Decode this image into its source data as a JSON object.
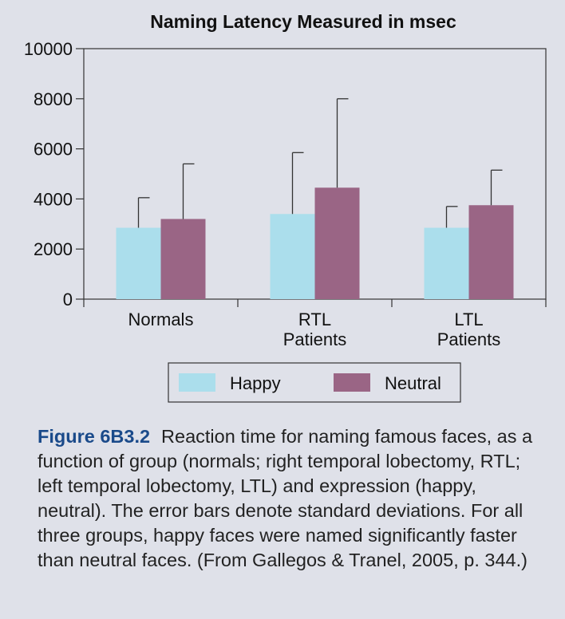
{
  "chart_data": {
    "type": "bar",
    "title": "Naming Latency Measured in msec",
    "categories": [
      [
        "Normals"
      ],
      [
        "RTL",
        "Patients"
      ],
      [
        "LTL",
        "Patients"
      ]
    ],
    "series": [
      {
        "name": "Happy",
        "values": [
          2850,
          3400,
          2850
        ],
        "error": [
          1200,
          2450,
          850
        ]
      },
      {
        "name": "Neutral",
        "values": [
          3200,
          4450,
          3750
        ],
        "error": [
          2200,
          3550,
          1400
        ]
      }
    ],
    "ylim": [
      0,
      10000
    ],
    "yticks": [
      0,
      2000,
      4000,
      6000,
      8000,
      10000
    ],
    "xlabel": "",
    "ylabel": "",
    "grid": false,
    "legend_position": "bottom",
    "colors": {
      "Happy": "#abdeec",
      "Neutral": "#9a6585"
    }
  },
  "caption": {
    "label": "Figure 6B3.2",
    "text": "Reaction time for naming famous faces, as a function of group (normals; right temporal lobectomy, RTL; left temporal lobectomy, LTL) and expression (happy, neutral). The error bars denote standard deviations. For all three groups, happy faces were named significantly faster than neutral faces. (From Gallegos & Tranel, 2005, p. 344.)"
  }
}
